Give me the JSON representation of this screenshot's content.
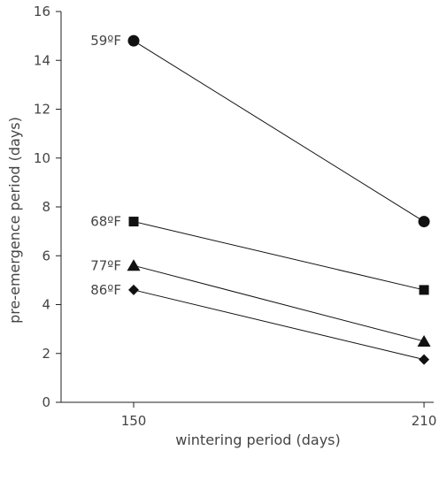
{
  "chart_data": {
    "type": "line",
    "title": "",
    "xlabel": "wintering period (days)",
    "ylabel": "pre-emergence period (days)",
    "x": [
      150,
      210
    ],
    "x_tick_labels": [
      "150",
      "210"
    ],
    "xlim": [
      135,
      212
    ],
    "ylim": [
      0,
      16
    ],
    "y_ticks": [
      0,
      2,
      4,
      6,
      8,
      10,
      12,
      14,
      16
    ],
    "y_tick_labels": [
      "0",
      "2",
      "4",
      "6",
      "8",
      "10",
      "12",
      "14",
      "16"
    ],
    "grid": false,
    "legend": "none (series labeled inline at left)",
    "series": [
      {
        "name": "59ºF",
        "marker": "circle",
        "values": [
          14.8,
          7.4
        ]
      },
      {
        "name": "68ºF",
        "marker": "square",
        "values": [
          7.4,
          4.6
        ]
      },
      {
        "name": "77ºF",
        "marker": "triangle",
        "values": [
          5.6,
          2.5
        ]
      },
      {
        "name": "86ºF",
        "marker": "diamond",
        "values": [
          4.6,
          1.75
        ]
      }
    ],
    "colors": {
      "marks": "#111111",
      "text": "#444444",
      "axis": "#222222"
    }
  }
}
